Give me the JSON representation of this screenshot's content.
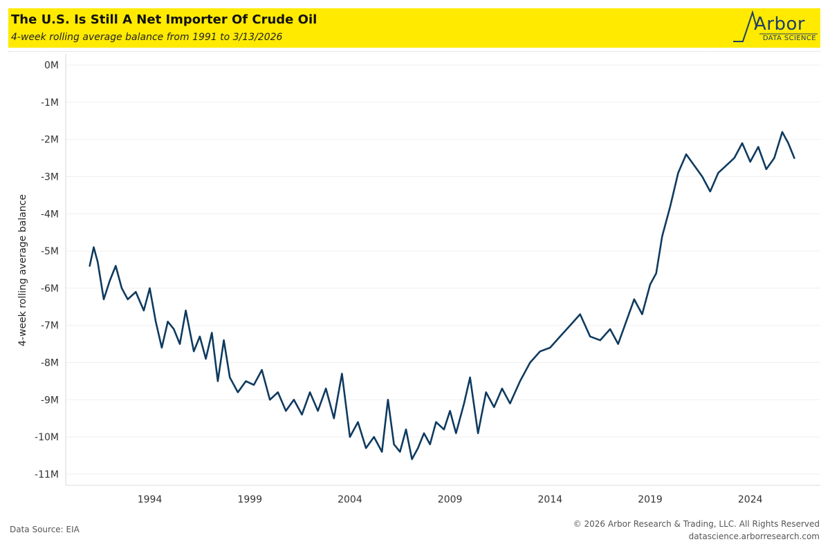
{
  "header": {
    "title": "The U.S. Is Still A Net Importer Of Crude Oil",
    "subtitle": "4-week rolling average balance from 1991 to 3/13/2026",
    "logo": {
      "word": "Arbor",
      "sub": "DATA SCIENCE"
    }
  },
  "footer": {
    "source": "Data Source: EIA",
    "copyright": "© 2026 Arbor Research & Trading, LLC. All Rights Reserved",
    "website": "datascience.arborresearch.com"
  },
  "colors": {
    "header_bg": "#ffea00",
    "line": "#0e3a5f",
    "grid": "#efefef",
    "logo": "#1f3f66"
  },
  "chart_data": {
    "type": "line",
    "title": "",
    "ylabel": "4-week rolling average balance",
    "xlabel": "",
    "ylim": [
      -11.3,
      0.3
    ],
    "xlim": [
      1989.8,
      2027.5
    ],
    "yticks": [
      {
        "v": 0,
        "label": "0M"
      },
      {
        "v": -1,
        "label": "-1M"
      },
      {
        "v": -2,
        "label": "-2M"
      },
      {
        "v": -3,
        "label": "-3M"
      },
      {
        "v": -4,
        "label": "-4M"
      },
      {
        "v": -5,
        "label": "-5M"
      },
      {
        "v": -6,
        "label": "-6M"
      },
      {
        "v": -7,
        "label": "-7M"
      },
      {
        "v": -8,
        "label": "-8M"
      },
      {
        "v": -9,
        "label": "-9M"
      },
      {
        "v": -10,
        "label": "-10M"
      },
      {
        "v": -11,
        "label": "-11M"
      }
    ],
    "xticks": [
      {
        "v": 1994,
        "label": "1994"
      },
      {
        "v": 1999,
        "label": "1999"
      },
      {
        "v": 2004,
        "label": "2004"
      },
      {
        "v": 2009,
        "label": "2009"
      },
      {
        "v": 2014,
        "label": "2014"
      },
      {
        "v": 2019,
        "label": "2019"
      },
      {
        "v": 2024,
        "label": "2024"
      }
    ],
    "grid": true,
    "series": [
      {
        "name": "",
        "x": [
          1991.0,
          1991.2,
          1991.4,
          1991.7,
          1992.0,
          1992.3,
          1992.6,
          1992.9,
          1993.3,
          1993.7,
          1994.0,
          1994.3,
          1994.6,
          1994.9,
          1995.2,
          1995.5,
          1995.8,
          1996.2,
          1996.5,
          1996.8,
          1997.1,
          1997.4,
          1997.7,
          1998.0,
          1998.4,
          1998.8,
          1999.2,
          1999.6,
          2000.0,
          2000.4,
          2000.8,
          2001.2,
          2001.6,
          2002.0,
          2002.4,
          2002.8,
          2003.2,
          2003.6,
          2004.0,
          2004.4,
          2004.8,
          2005.2,
          2005.6,
          2005.9,
          2006.2,
          2006.5,
          2006.8,
          2007.1,
          2007.4,
          2007.7,
          2008.0,
          2008.3,
          2008.7,
          2009.0,
          2009.3,
          2009.7,
          2010.0,
          2010.4,
          2010.8,
          2011.2,
          2011.6,
          2012.0,
          2012.5,
          2013.0,
          2013.5,
          2014.0,
          2014.5,
          2015.0,
          2015.5,
          2016.0,
          2016.5,
          2017.0,
          2017.4,
          2017.8,
          2018.2,
          2018.6,
          2019.0,
          2019.3,
          2019.6,
          2020.0,
          2020.4,
          2020.8,
          2021.2,
          2021.6,
          2022.0,
          2022.4,
          2022.8,
          2023.2,
          2023.6,
          2024.0,
          2024.4,
          2024.8,
          2025.2,
          2025.6,
          2025.9,
          2026.2
        ],
        "values": [
          -5.4,
          -4.9,
          -5.3,
          -6.3,
          -5.8,
          -5.4,
          -6.0,
          -6.3,
          -6.1,
          -6.6,
          -6.0,
          -6.9,
          -7.6,
          -6.9,
          -7.1,
          -7.5,
          -6.6,
          -7.7,
          -7.3,
          -7.9,
          -7.2,
          -8.5,
          -7.4,
          -8.4,
          -8.8,
          -8.5,
          -8.6,
          -8.2,
          -9.0,
          -8.8,
          -9.3,
          -9.0,
          -9.4,
          -8.8,
          -9.3,
          -8.7,
          -9.5,
          -8.3,
          -10.0,
          -9.6,
          -10.3,
          -10.0,
          -10.4,
          -9.0,
          -10.2,
          -10.4,
          -9.8,
          -10.6,
          -10.3,
          -9.9,
          -10.2,
          -9.6,
          -9.8,
          -9.3,
          -9.9,
          -9.1,
          -8.4,
          -9.9,
          -8.8,
          -9.2,
          -8.7,
          -9.1,
          -8.5,
          -8.0,
          -7.7,
          -7.6,
          -7.3,
          -7.0,
          -6.7,
          -7.3,
          -7.4,
          -7.1,
          -7.5,
          -6.9,
          -6.3,
          -6.7,
          -5.9,
          -5.6,
          -4.6,
          -3.8,
          -2.9,
          -2.4,
          -2.7,
          -3.0,
          -3.4,
          -2.9,
          -2.7,
          -2.5,
          -2.1,
          -2.6,
          -2.2,
          -2.8,
          -2.5,
          -1.8,
          -2.1,
          -2.5
        ]
      }
    ]
  }
}
